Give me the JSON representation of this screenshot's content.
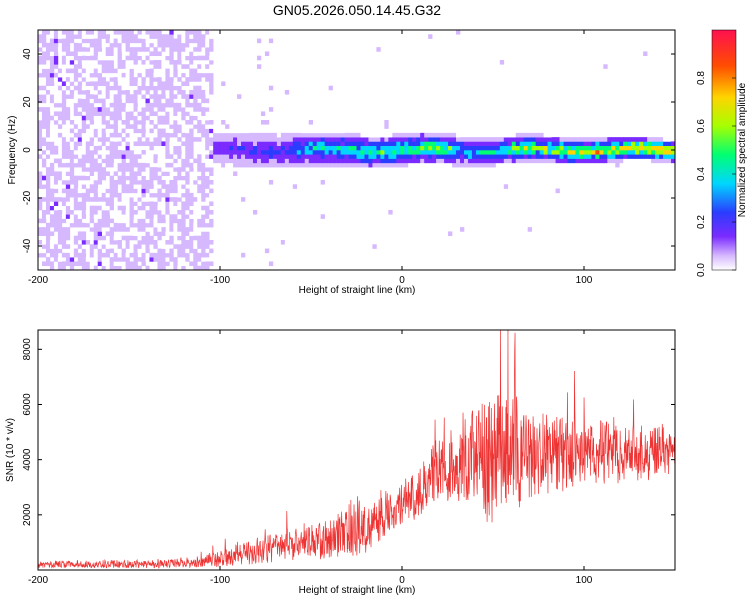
{
  "title": "GN05.2026.050.14.45.G32",
  "chart_data": [
    {
      "type": "heatmap",
      "name": "spectrogram",
      "xlabel": "Height of straight line (km)",
      "ylabel": "Frequency (Hz)",
      "xlim": [
        -200,
        150
      ],
      "ylim": [
        -50,
        50
      ],
      "xticks": [
        -200,
        -100,
        0,
        100
      ],
      "xtick_labels": [
        "-200",
        "-100",
        "0",
        "100"
      ],
      "yticks": [
        40,
        20,
        0,
        -20,
        -40
      ],
      "ytick_labels": [
        "40",
        "20",
        "0",
        "-20",
        "-40"
      ],
      "colorbar": {
        "label": "Normalized spectral amplitude",
        "range": [
          0,
          1
        ],
        "ticks": [
          0,
          0.2,
          0.4,
          0.6,
          0.8
        ],
        "tick_labels": [
          "0.0",
          "0.2",
          "0.4",
          "0.6",
          "0.8"
        ],
        "colormap": [
          "#ffffff",
          "#d6b8ff",
          "#7a2bff",
          "#2a3dff",
          "#00d6ff",
          "#00ff73",
          "#a6ff00",
          "#ffd400",
          "#ff4d00",
          "#ff1050"
        ]
      },
      "features": {
        "noise_region_x": [
          -200,
          -103
        ],
        "signal_band_x": [
          -105,
          150
        ],
        "signal_center_freq_hz": 0,
        "signal_halfwidth_hz": [
          6,
          2
        ],
        "peak_amplitude": 0.95
      }
    },
    {
      "type": "line",
      "name": "snr",
      "xlabel": "Height of straight line (km)",
      "ylabel": "SNR (10 * v/v)",
      "xlim": [
        -200,
        150
      ],
      "ylim": [
        0,
        8700
      ],
      "xticks": [
        -200,
        -100,
        0,
        100
      ],
      "xtick_labels": [
        "-200",
        "-100",
        "0",
        "100"
      ],
      "yticks": [
        2000,
        4000,
        6000,
        8000
      ],
      "ytick_labels": [
        "2000",
        "4000",
        "6000",
        "8000"
      ],
      "line_color": "#ee3333",
      "envelope": {
        "x": [
          -200,
          -150,
          -120,
          -100,
          -80,
          -60,
          -40,
          -30,
          -25,
          -20,
          -10,
          0,
          10,
          20,
          30,
          40,
          50,
          60,
          70,
          80,
          100,
          120,
          150
        ],
        "mean": [
          200,
          220,
          250,
          400,
          700,
          900,
          1100,
          1400,
          1800,
          1500,
          2000,
          2500,
          2900,
          3700,
          4000,
          4200,
          3600,
          4300,
          4100,
          4200,
          4300,
          4200,
          4250
        ],
        "spread": [
          120,
          150,
          180,
          300,
          500,
          600,
          700,
          900,
          1300,
          900,
          800,
          900,
          1100,
          1300,
          1500,
          1900,
          2600,
          2400,
          1800,
          1500,
          1300,
          1100,
          900
        ]
      },
      "peak": {
        "x": 62,
        "y": 8600
      }
    }
  ]
}
